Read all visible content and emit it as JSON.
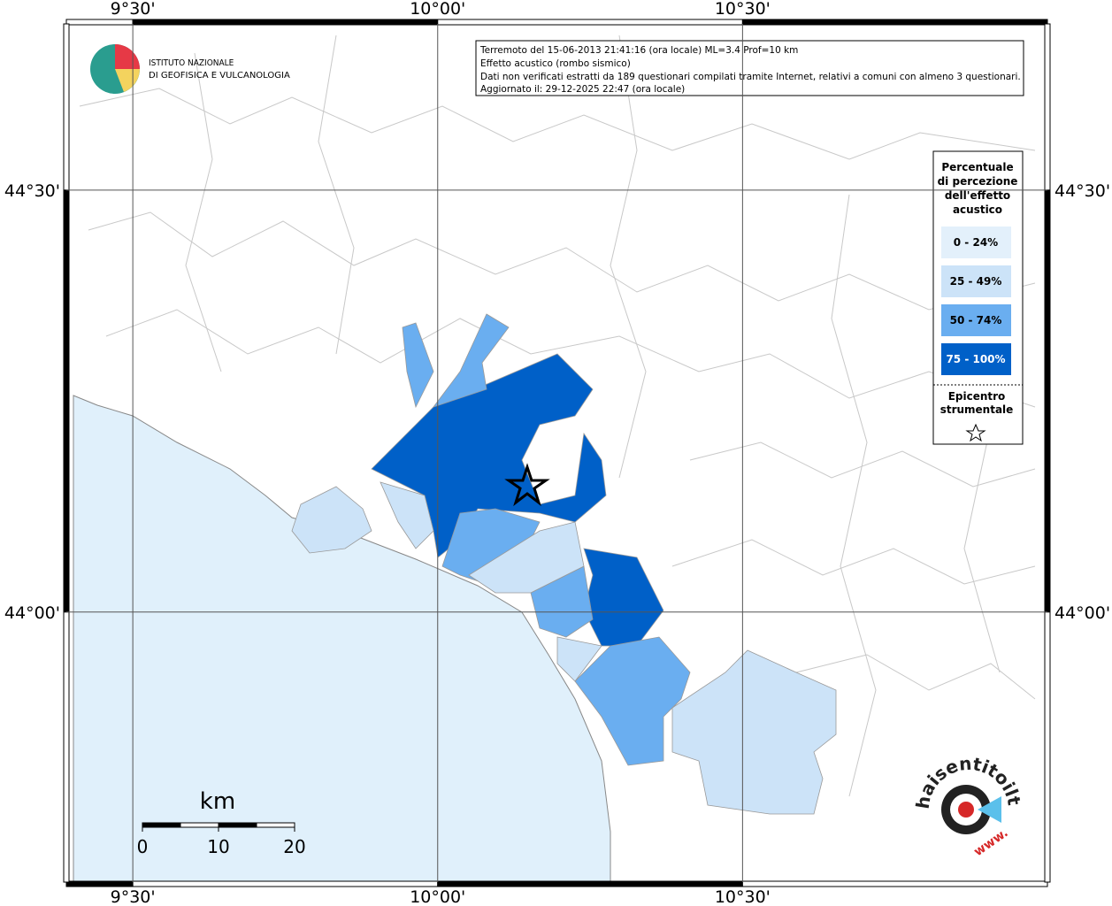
{
  "map": {
    "lon_ticks": [
      {
        "value": 9.5,
        "label": "9°30'"
      },
      {
        "value": 10.0,
        "label": "10°00'"
      },
      {
        "value": 10.5,
        "label": "10°30'"
      }
    ],
    "lat_ticks": [
      {
        "value": 44.5,
        "label": "44°30'"
      },
      {
        "value": 44.0,
        "label": "44°00'"
      }
    ],
    "xlim": [
      9.391,
      11.0
    ],
    "ylim": [
      43.68,
      44.697
    ]
  },
  "logo": {
    "line1": "ISTITUTO NAZIONALE",
    "line2": "DI GEOFISICA E VULCANOLOGIA"
  },
  "info": {
    "lines": [
      "Terremoto del 15-06-2013 21:41:16 (ora locale) ML=3.4 Prof=10 km",
      "Effetto acustico (rombo sismico)",
      "Dati non verificati estratti da 189 questionari compilati tramite Internet, relativi a comuni con almeno 3 questionari.",
      "Aggiornato il: 29-12-2025 22:47 (ora locale)"
    ]
  },
  "legend": {
    "title_lines": [
      "Percentuale",
      "di percezione",
      "dell'effetto",
      "acustico"
    ],
    "classes": [
      {
        "label": "0 - 24%",
        "color": "#e3f0fb"
      },
      {
        "label": "25 - 49%",
        "color": "#cce3f8"
      },
      {
        "label": "50 - 74%",
        "color": "#6aaef0"
      },
      {
        "label": "75 - 100%",
        "color": "#0060c8"
      }
    ],
    "epicenter_lines": [
      "Epicentro",
      "strumentale"
    ]
  },
  "scale_bar": {
    "unit": "km",
    "ticks": [
      0,
      10,
      20
    ]
  },
  "badge": {
    "text": "haisentitoilterremoto.it",
    "prefix": "www."
  }
}
